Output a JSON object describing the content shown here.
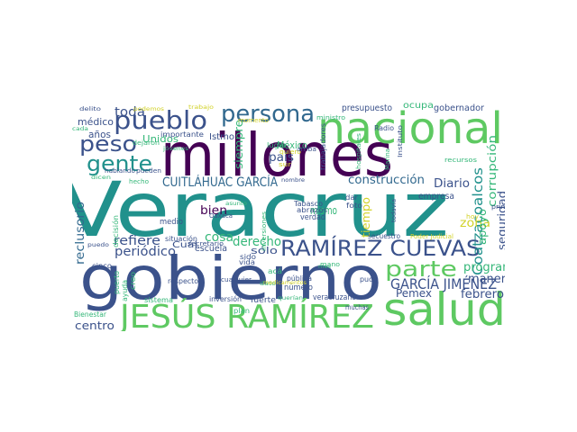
{
  "palette": {
    "teal": "#21918c",
    "deep_purple": "#440154",
    "indigo": "#3b528b",
    "blue": "#31688e",
    "green": "#5ec962",
    "mint": "#35b779",
    "yellow": "#d2d22a",
    "purple": "#472d7b"
  },
  "words": [
    {
      "id": "veracruz",
      "text": "Veracruz",
      "color": "teal"
    },
    {
      "id": "millones",
      "text": "millones",
      "color": "deep_purple"
    },
    {
      "id": "gobierno",
      "text": "gobierno",
      "color": "indigo"
    },
    {
      "id": "nacional",
      "text": "nacional",
      "color": "green"
    },
    {
      "id": "salud",
      "text": "salud",
      "color": "green"
    },
    {
      "id": "jesus-ramirez",
      "text": "JESÚS RAMÍREZ",
      "color": "green"
    },
    {
      "id": "pueblo",
      "text": "pueblo",
      "color": "indigo"
    },
    {
      "id": "persona",
      "text": "persona",
      "color": "blue"
    },
    {
      "id": "ramirez-cuevas",
      "text": "RAMÍREZ CUEVAS",
      "color": "indigo"
    },
    {
      "id": "parte",
      "text": "parte",
      "color": "green"
    },
    {
      "id": "peso",
      "text": "peso",
      "color": "indigo"
    },
    {
      "id": "gente",
      "text": "gente",
      "color": "teal"
    },
    {
      "id": "cuitlahuac-garcia",
      "text": "CUITLÁHUAC GARCÍA",
      "color": "blue"
    },
    {
      "id": "garcia-jimenez",
      "text": "GARCÍA JIMÉNEZ",
      "color": "indigo"
    },
    {
      "id": "coatzacoalcos",
      "text": "Coatzacoalcos",
      "color": "teal"
    },
    {
      "id": "construccion",
      "text": "construcción",
      "color": "blue"
    },
    {
      "id": "toda",
      "text": "toda",
      "color": "indigo"
    },
    {
      "id": "periodico",
      "text": "periódico",
      "color": "indigo"
    },
    {
      "id": "refiere",
      "text": "refiere",
      "color": "indigo"
    },
    {
      "id": "pemex",
      "text": "Pemex",
      "color": "indigo"
    },
    {
      "id": "cosa",
      "text": "cosa",
      "color": "mint"
    },
    {
      "id": "derecho",
      "text": "derecho",
      "color": "mint"
    },
    {
      "id": "casos",
      "text": "casos",
      "color": "blue"
    },
    {
      "id": "corrupcion",
      "text": "corrupción",
      "color": "mint"
    },
    {
      "id": "seguridad",
      "text": "seguridad",
      "color": "indigo"
    },
    {
      "id": "diario",
      "text": "Diario",
      "color": "indigo"
    },
    {
      "id": "programa",
      "text": "programa",
      "color": "mint"
    },
    {
      "id": "manera",
      "text": "manera",
      "color": "indigo"
    },
    {
      "id": "febrero",
      "text": "febrero",
      "color": "indigo"
    },
    {
      "id": "reclusorio",
      "text": "reclusorio",
      "color": "blue"
    },
    {
      "id": "zona",
      "text": "zona",
      "color": "yellow"
    },
    {
      "id": "apoyo",
      "text": "apoyo",
      "color": "mint"
    },
    {
      "id": "tiempo",
      "text": "tiempo",
      "color": "yellow"
    },
    {
      "id": "siempre",
      "text": "siempre",
      "color": "mint"
    },
    {
      "id": "pais",
      "text": "país",
      "color": "indigo"
    },
    {
      "id": "bien",
      "text": "bien",
      "color": "deep_purple"
    },
    {
      "id": "mismo",
      "text": "mismo",
      "color": "mint"
    },
    {
      "id": "centro",
      "text": "centro",
      "color": "indigo"
    },
    {
      "id": "unidos",
      "text": "Unidos",
      "color": "mint"
    },
    {
      "id": "medico",
      "text": "médico",
      "color": "indigo"
    },
    {
      "id": "anos",
      "text": "años",
      "color": "indigo"
    },
    {
      "id": "istmo",
      "text": "Istmo",
      "color": "indigo"
    },
    {
      "id": "cual",
      "text": "Cuál",
      "color": "indigo"
    },
    {
      "id": "solo",
      "text": "sólo",
      "color": "indigo"
    },
    {
      "id": "escuela",
      "text": "escuela",
      "color": "indigo"
    },
    {
      "id": "mexico",
      "text": "México",
      "color": "mint"
    },
    {
      "id": "presupuesto",
      "text": "presupuesto",
      "color": "indigo"
    },
    {
      "id": "ocupa",
      "text": "ocupa",
      "color": "mint"
    },
    {
      "id": "gobernador",
      "text": "gobernador",
      "color": "indigo"
    },
    {
      "id": "empresa",
      "text": "empresa",
      "color": "indigo"
    },
    {
      "id": "importante",
      "text": "importante",
      "color": "indigo"
    },
    {
      "id": "medio",
      "text": "medio",
      "color": "indigo"
    },
    {
      "id": "verdad",
      "text": "verdad",
      "color": "indigo"
    },
    {
      "id": "abrazos",
      "text": "abrazos",
      "color": "indigo"
    },
    {
      "id": "numero",
      "text": "número",
      "color": "indigo"
    },
    {
      "id": "fuerte",
      "text": "fuerte",
      "color": "indigo"
    },
    {
      "id": "veracruzano",
      "text": "veracruzano",
      "color": "indigo"
    },
    {
      "id": "bienestar",
      "text": "Bienestar",
      "color": "mint"
    },
    {
      "id": "cinco",
      "text": "cinco",
      "color": "indigo"
    },
    {
      "id": "tabasco",
      "text": "Tabasco",
      "color": "indigo"
    },
    {
      "id": "lugar",
      "text": "lugar",
      "color": "mint"
    },
    {
      "id": "trabajadores",
      "text": "trabajadores",
      "color": "indigo"
    },
    {
      "id": "inversion",
      "text": "inversión",
      "color": "indigo"
    },
    {
      "id": "plan",
      "text": "plan",
      "color": "mint"
    },
    {
      "id": "sistema",
      "text": "sistema",
      "color": "mint"
    },
    {
      "id": "ayuda",
      "text": "ayuda",
      "color": "mint"
    },
    {
      "id": "creo",
      "text": "creo",
      "color": "mint"
    },
    {
      "id": "puerto",
      "text": "puerto",
      "color": "mint"
    },
    {
      "id": "decision",
      "text": "decisión",
      "color": "mint"
    },
    {
      "id": "situacion",
      "text": "situación",
      "color": "indigo"
    },
    {
      "id": "secretario",
      "text": "secretario",
      "color": "indigo"
    },
    {
      "id": "sido",
      "text": "sido",
      "color": "indigo"
    },
    {
      "id": "vida",
      "text": "vida",
      "color": "indigo"
    },
    {
      "id": "respecto",
      "text": "respecto",
      "color": "indigo"
    },
    {
      "id": "cualquier",
      "text": "cualquier",
      "color": "indigo"
    },
    {
      "id": "publica",
      "text": "pública",
      "color": "indigo"
    },
    {
      "id": "pudo",
      "text": "pudo",
      "color": "indigo"
    },
    {
      "id": "muchas",
      "text": "muchas",
      "color": "indigo"
    },
    {
      "id": "aca",
      "text": "acá",
      "color": "mint"
    },
    {
      "id": "mano",
      "text": "mano",
      "color": "mint"
    },
    {
      "id": "secuestro",
      "text": "secuestro",
      "color": "indigo"
    },
    {
      "id": "poder-judicial",
      "text": "Poder Judicial",
      "color": "yellow"
    },
    {
      "id": "todavia",
      "text": "todavía",
      "color": "indigo"
    },
    {
      "id": "foto",
      "text": "foto",
      "color": "indigo"
    },
    {
      "id": "dar",
      "text": "dar",
      "color": "indigo"
    },
    {
      "id": "primer",
      "text": "primer",
      "color": "indigo"
    },
    {
      "id": "transitorio",
      "text": "transitorio",
      "color": "purple"
    },
    {
      "id": "recursos",
      "text": "recursos",
      "color": "mint"
    },
    {
      "id": "instituto",
      "text": "Instituto",
      "color": "indigo"
    },
    {
      "id": "marina",
      "text": "Marina",
      "color": "mint"
    },
    {
      "id": "hospitales",
      "text": "hospitales",
      "color": "mint"
    },
    {
      "id": "radio",
      "text": "Radio",
      "color": "indigo"
    },
    {
      "id": "momento",
      "text": "momento",
      "color": "yellow"
    },
    {
      "id": "ministro",
      "text": "ministro",
      "color": "mint"
    },
    {
      "id": "quiero",
      "text": "quiero",
      "color": "yellow"
    },
    {
      "id": "arriba",
      "text": "arriba",
      "color": "indigo"
    },
    {
      "id": "sur",
      "text": "sur",
      "color": "yellow"
    },
    {
      "id": "dejaron",
      "text": "dejaron",
      "color": "mint"
    },
    {
      "id": "jovenes",
      "text": "jóvenes",
      "color": "mint"
    },
    {
      "id": "trabajo",
      "text": "trabajo",
      "color": "yellow"
    },
    {
      "id": "podemos",
      "text": "podemos",
      "color": "yellow"
    },
    {
      "id": "delito",
      "text": "delito",
      "color": "indigo"
    },
    {
      "id": "cada",
      "text": "cada",
      "color": "mint"
    },
    {
      "id": "hablando",
      "text": "hablando",
      "color": "indigo"
    },
    {
      "id": "pueden",
      "text": "pueden",
      "color": "indigo"
    },
    {
      "id": "dicen",
      "text": "dicen",
      "color": "mint"
    },
    {
      "id": "hecho",
      "text": "hecho",
      "color": "mint"
    },
    {
      "id": "nombre",
      "text": "nombre",
      "color": "indigo"
    },
    {
      "id": "asunto",
      "text": "asunto",
      "color": "mint"
    },
    {
      "id": "oaxaca",
      "text": "Oaxaca",
      "color": "indigo"
    },
    {
      "id": "inversiones",
      "text": "inversiones",
      "color": "mint"
    },
    {
      "id": "dato",
      "text": "dato",
      "color": "mint"
    },
    {
      "id": "medicamentos",
      "text": "medicamentos",
      "color": "yellow"
    },
    {
      "id": "querian",
      "text": "querían",
      "color": "mint"
    },
    {
      "id": "puedo",
      "text": "puedo",
      "color": "indigo"
    },
    {
      "id": "hoy",
      "text": "hoy",
      "color": "yellow"
    },
    {
      "id": "mes",
      "text": "mes",
      "color": "mint"
    }
  ]
}
